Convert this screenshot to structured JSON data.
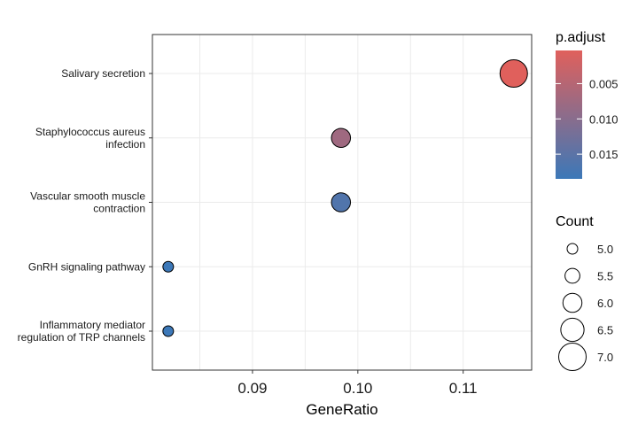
{
  "chart_data": {
    "type": "scatter",
    "title": "",
    "xlabel": "GeneRatio",
    "ylabel": "",
    "xlim": [
      0.0805,
      0.1165
    ],
    "x_ticks": [
      {
        "value": 0.09,
        "label": "0.09"
      },
      {
        "value": 0.1,
        "label": "0.10"
      },
      {
        "value": 0.11,
        "label": "0.11"
      }
    ],
    "grid": true,
    "categories": [
      "Salivary secretion",
      "Staphylococcus aureus\ninfection",
      "Vascular smooth muscle\ncontraction",
      "GnRH signaling pathway",
      "Inflammatory mediator\nregulation of TRP channels"
    ],
    "points": [
      {
        "category": "Salivary secretion",
        "x": 0.1148,
        "count": 7,
        "p_adjust": 0.0003
      },
      {
        "category": "Staphylococcus aureus\ninfection",
        "x": 0.0984,
        "count": 6,
        "p_adjust": 0.0075
      },
      {
        "category": "Vascular smooth muscle\ncontraction",
        "x": 0.0984,
        "count": 6,
        "p_adjust": 0.0162
      },
      {
        "category": "GnRH signaling pathway",
        "x": 0.082,
        "count": 5,
        "p_adjust": 0.0185
      },
      {
        "category": "Inflammatory mediator\nregulation of TRP channels",
        "x": 0.082,
        "count": 5,
        "p_adjust": 0.0185
      }
    ],
    "color_legend": {
      "title": "p.adjust",
      "range": [
        0.0003,
        0.0185
      ],
      "ticks": [
        {
          "value": 0.005,
          "label": "0.005"
        },
        {
          "value": 0.01,
          "label": "0.010"
        },
        {
          "value": 0.015,
          "label": "0.015"
        }
      ],
      "low_color": "#e0605c",
      "high_color": "#3c78b8"
    },
    "size_legend": {
      "title": "Count",
      "range": [
        5,
        7
      ],
      "entries": [
        {
          "value": 5.0,
          "label": "5.0"
        },
        {
          "value": 5.5,
          "label": "5.5"
        },
        {
          "value": 6.0,
          "label": "6.0"
        },
        {
          "value": 6.5,
          "label": "6.5"
        },
        {
          "value": 7.0,
          "label": "7.0"
        }
      ]
    },
    "legend_position": "right"
  }
}
